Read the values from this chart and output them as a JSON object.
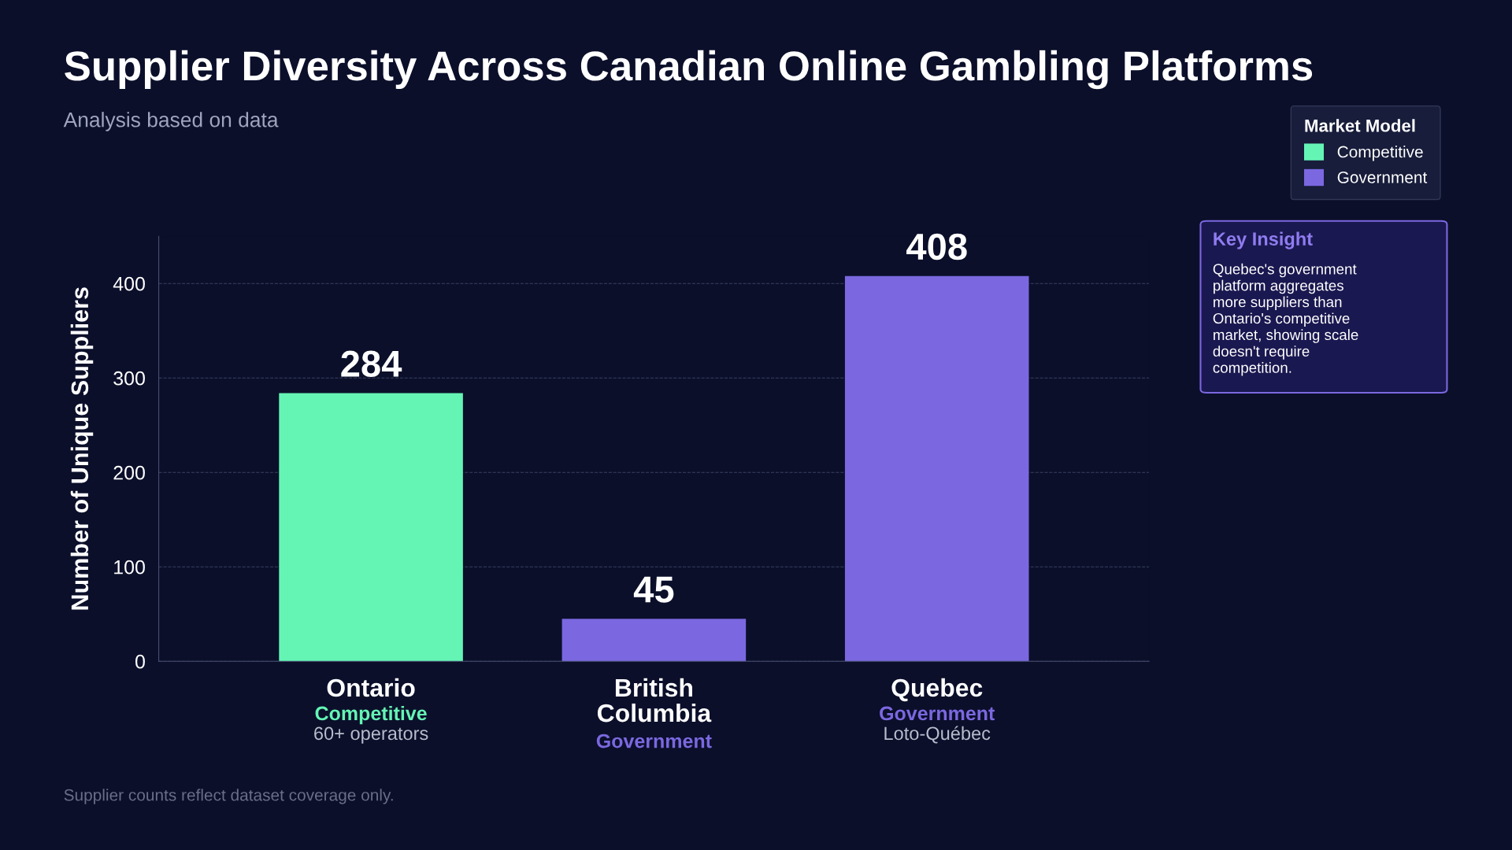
{
  "chart_data": {
    "type": "bar",
    "title": "Supplier Diversity Across Canadian Online Gambling Platforms",
    "subtitle": "Analysis based on data",
    "ylabel": "Number of Unique Suppliers",
    "categories": [
      "Ontario\nCompetitive\n60+ operators",
      "British Columbia\nGovernment",
      "Quebec\nGovernment\nLoto-Québec"
    ],
    "series": [
      {
        "name": "Competitive",
        "color": "#64f5b4",
        "values": [
          284,
          null,
          null
        ]
      },
      {
        "name": "Government",
        "color": "#7b68e0",
        "values": [
          null,
          45,
          408
        ]
      }
    ],
    "ylim": [
      0,
      450
    ],
    "yticks": [
      0,
      100,
      200,
      300,
      400
    ],
    "grid": "y",
    "legend": "top right",
    "legend_title": "Market Model",
    "data_labels": true,
    "annotations": [
      "Key Insight",
      "Quebec's government\nplatform aggregates\nmore suppliers than\nOntario's competitive\nmarket, showing scale\ndoesn't require\ncompetition.",
      "Supplier counts reflect dataset coverage only."
    ]
  }
}
